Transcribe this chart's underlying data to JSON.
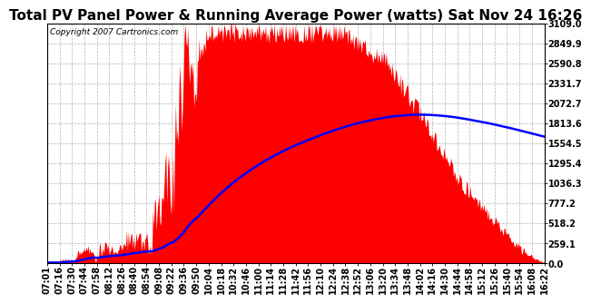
{
  "title": "Total PV Panel Power & Running Average Power (watts) Sat Nov 24 16:26",
  "copyright": "Copyright 2007 Cartronics.com",
  "background_color": "#ffffff",
  "plot_bg_color": "#ffffff",
  "grid_color": "#aaaaaa",
  "fill_color": "#ff0000",
  "line_color": "#0000ff",
  "ytick_labels": [
    "0.0",
    "259.1",
    "518.2",
    "777.2",
    "1036.3",
    "1295.4",
    "1554.5",
    "1813.6",
    "2072.7",
    "2331.7",
    "2590.8",
    "2849.9",
    "3109.0"
  ],
  "ymax": 3109.0,
  "ymin": 0.0,
  "title_fontsize": 11,
  "tick_fontsize": 7,
  "copyright_fontsize": 6.5,
  "xtick_labels": [
    "07:01",
    "07:16",
    "07:30",
    "07:44",
    "07:58",
    "08:12",
    "08:26",
    "08:40",
    "08:54",
    "09:08",
    "09:22",
    "09:36",
    "09:50",
    "10:04",
    "10:18",
    "10:32",
    "10:46",
    "11:00",
    "11:14",
    "11:28",
    "11:42",
    "11:56",
    "12:10",
    "12:24",
    "12:38",
    "12:52",
    "13:06",
    "13:20",
    "13:34",
    "13:48",
    "14:02",
    "14:16",
    "14:30",
    "14:44",
    "14:58",
    "15:12",
    "15:26",
    "15:40",
    "15:54",
    "16:08",
    "16:22"
  ]
}
